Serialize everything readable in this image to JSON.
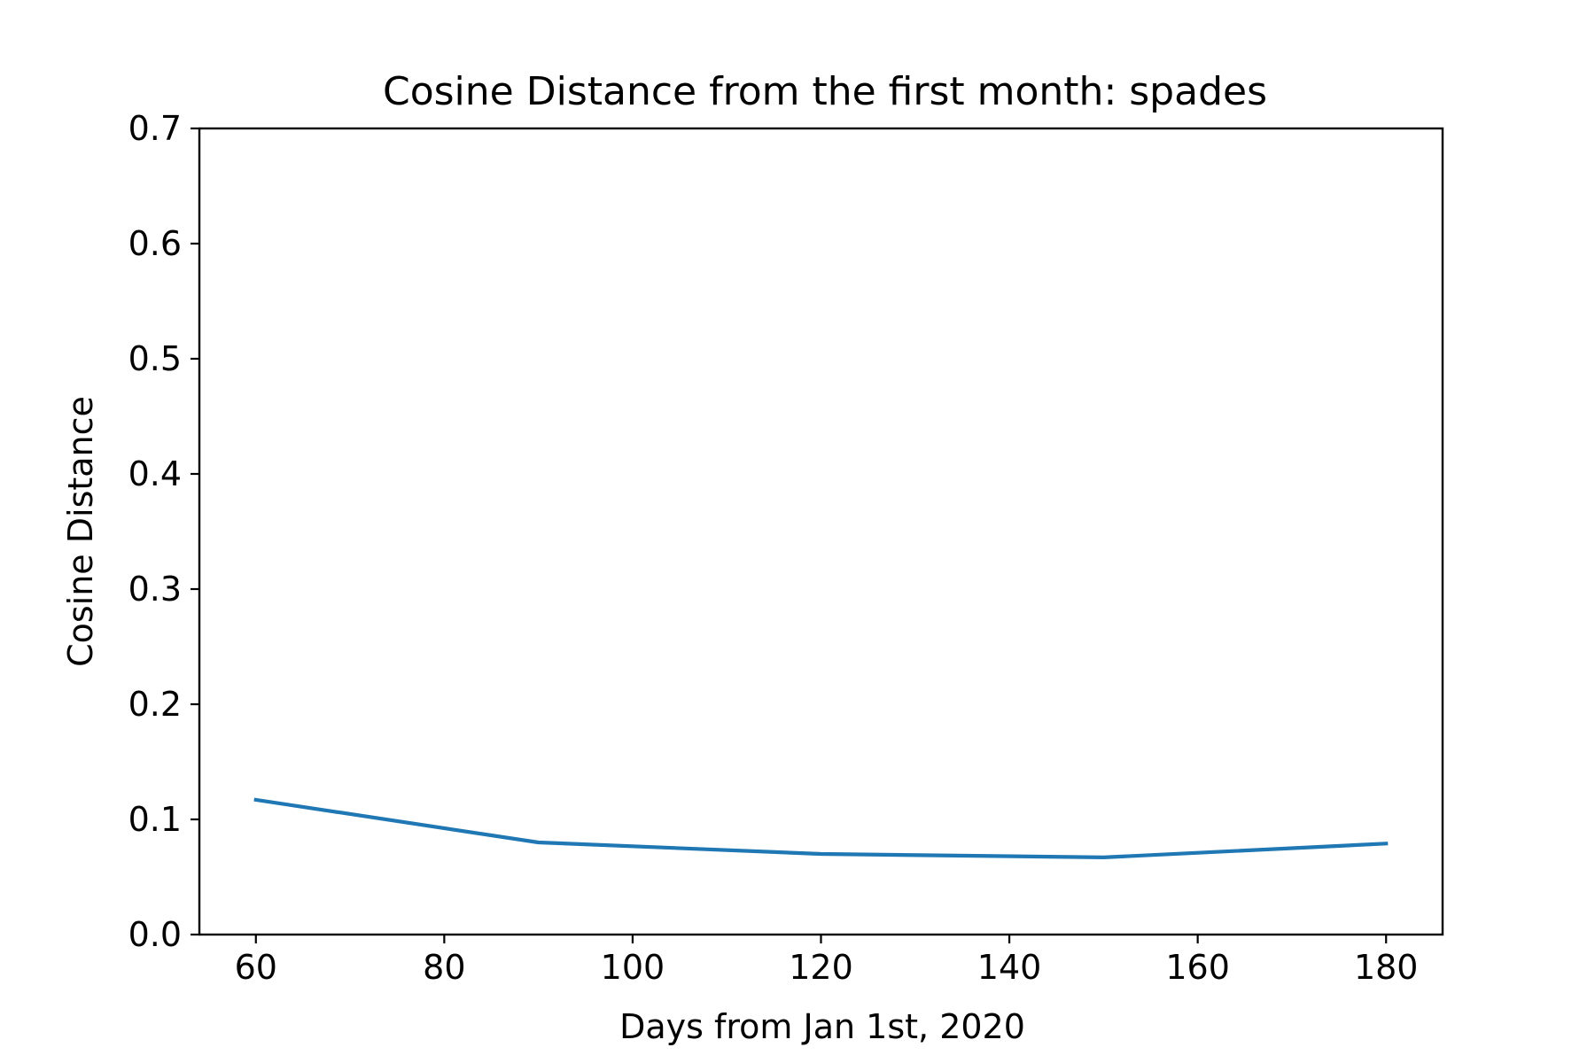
{
  "chart_data": {
    "type": "line",
    "title": "Cosine Distance from the first month: spades",
    "xlabel": "Days from Jan 1st, 2020",
    "ylabel": "Cosine Distance",
    "xlim": [
      54,
      186
    ],
    "ylim": [
      0.0,
      0.7
    ],
    "xticks": [
      60,
      80,
      100,
      120,
      140,
      160,
      180
    ],
    "xtick_labels": [
      "60",
      "80",
      "100",
      "120",
      "140",
      "160",
      "180"
    ],
    "yticks": [
      0.0,
      0.1,
      0.2,
      0.3,
      0.4,
      0.5,
      0.6,
      0.7
    ],
    "ytick_labels": [
      "0.0",
      "0.1",
      "0.2",
      "0.3",
      "0.4",
      "0.5",
      "0.6",
      "0.7"
    ],
    "grid": false,
    "series": [
      {
        "color": "#1f77b4",
        "x": [
          60,
          90,
          120,
          150,
          180
        ],
        "y": [
          0.117,
          0.08,
          0.07,
          0.067,
          0.079
        ]
      }
    ]
  }
}
